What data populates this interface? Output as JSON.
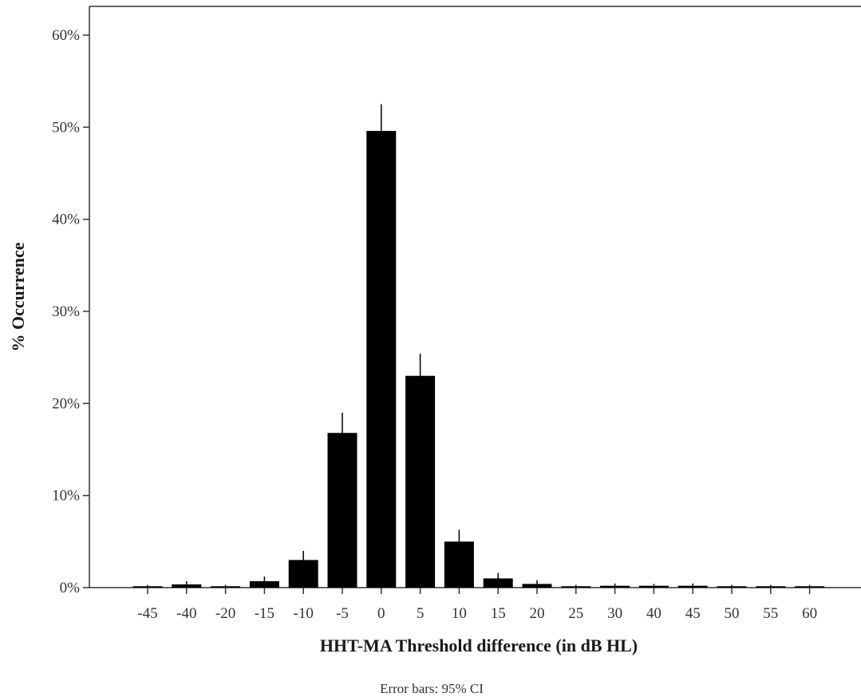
{
  "chart_data": {
    "type": "bar",
    "categories": [
      "-45",
      "-40",
      "-20",
      "-15",
      "-10",
      "-5",
      "0",
      "5",
      "10",
      "15",
      "20",
      "25",
      "30",
      "40",
      "45",
      "50",
      "55",
      "60"
    ],
    "values": [
      0.15,
      0.35,
      0.15,
      0.7,
      3.0,
      16.8,
      49.6,
      23.0,
      5.0,
      1.0,
      0.4,
      0.15,
      0.2,
      0.2,
      0.2,
      0.15,
      0.15,
      0.15
    ],
    "error_upper": [
      0.3,
      0.7,
      0.3,
      1.2,
      4.0,
      19.0,
      52.5,
      25.4,
      6.3,
      1.6,
      0.8,
      0.3,
      0.45,
      0.4,
      0.45,
      0.3,
      0.3,
      0.3
    ],
    "ylim": [
      0,
      60
    ],
    "yticks": [
      0,
      10,
      20,
      30,
      40,
      50,
      60
    ],
    "ytick_format": "%",
    "xlabel": "HHT-MA Threshold difference (in dB HL)",
    "ylabel": "% Occurrence",
    "note": "Error bars: 95% CI",
    "grid": false,
    "bar_color": "#000000",
    "axis_color": "#333333"
  }
}
